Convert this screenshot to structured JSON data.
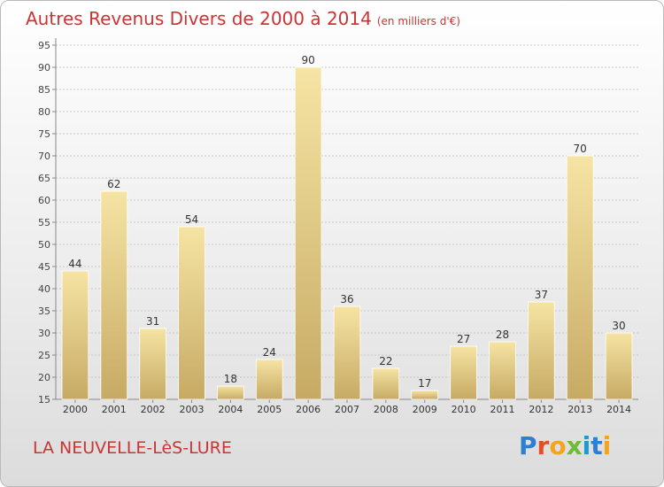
{
  "header": {
    "title": "Autres Revenus Divers de 2000 à 2014",
    "subtitle": "(en milliers d'€)"
  },
  "footer": {
    "place": "LA NEUVELLE-LèS-LURE",
    "brand": "Proxiti"
  },
  "colors": {
    "title": "#cc3333",
    "bar_light": "#f6e4a4",
    "bar_dark": "#c6aa64",
    "grid": "#c8c8c8"
  },
  "chart_data": {
    "type": "bar",
    "title": "Autres Revenus Divers de 2000 à 2014",
    "subtitle": "(en milliers d'€)",
    "categories": [
      "2000",
      "2001",
      "2002",
      "2003",
      "2004",
      "2005",
      "2006",
      "2007",
      "2008",
      "2009",
      "2010",
      "2011",
      "2012",
      "2013",
      "2014"
    ],
    "values": [
      44,
      62,
      31,
      54,
      18,
      24,
      90,
      36,
      22,
      17,
      27,
      28,
      37,
      70,
      30
    ],
    "ylim": [
      15,
      95
    ],
    "yticks": [
      15,
      20,
      25,
      30,
      35,
      40,
      45,
      50,
      55,
      60,
      65,
      70,
      75,
      80,
      85,
      90,
      95
    ],
    "grid": true,
    "data_labels": true
  }
}
